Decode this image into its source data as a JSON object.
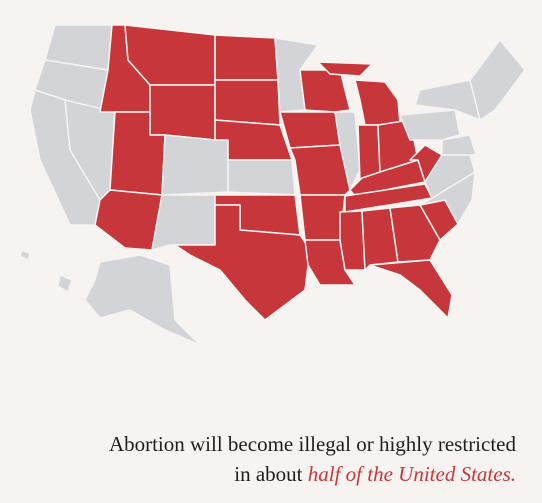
{
  "caption": {
    "line1": "Abortion will become illegal or highly restricted",
    "line2_prefix": "in about",
    "line2_emphasis": "half of the United States."
  }
}
